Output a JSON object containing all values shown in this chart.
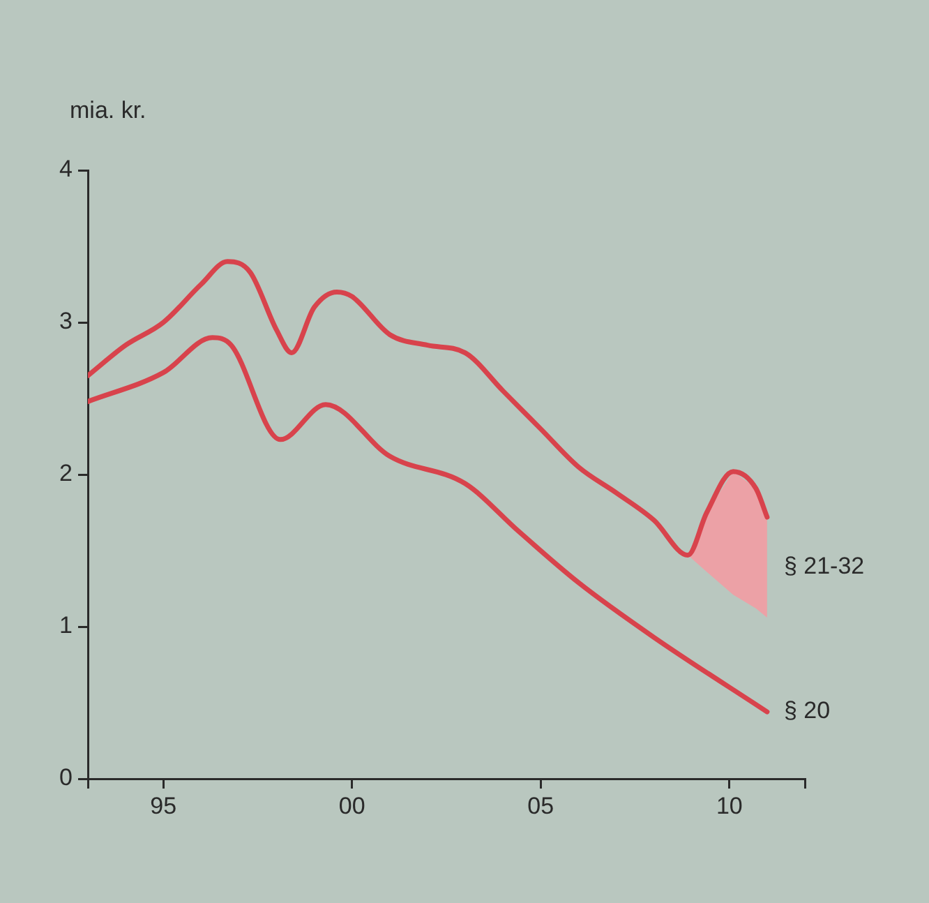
{
  "chart_data": {
    "type": "line",
    "ylabel": "mia. kr.",
    "xlim": [
      1993,
      2012
    ],
    "ylim": [
      0,
      4
    ],
    "xticks": [
      {
        "value": 1993,
        "label": null
      },
      {
        "value": 1995,
        "label": "95"
      },
      {
        "value": 2000,
        "label": "00"
      },
      {
        "value": 2005,
        "label": "05"
      },
      {
        "value": 2010,
        "label": "10"
      },
      {
        "value": 2012,
        "label": null
      }
    ],
    "yticks": [
      0,
      1,
      2,
      3,
      4
    ],
    "grid": false,
    "legend": false,
    "marker": "none",
    "series": [
      {
        "name": "§ 21-32",
        "color": "#d8434c",
        "x": [
          1993,
          1994,
          1995,
          1996,
          1996.7,
          1997.3,
          1998,
          1998.4,
          1999,
          1999.6,
          2000,
          2001,
          2002,
          2003,
          2004,
          2005,
          2006,
          2007,
          2008,
          2008.9,
          2009.4,
          2010.1,
          2010.7,
          2011
        ],
        "values": [
          2.65,
          2.85,
          3.0,
          3.25,
          3.4,
          3.33,
          2.95,
          2.8,
          3.1,
          3.2,
          3.17,
          2.92,
          2.85,
          2.8,
          2.55,
          2.3,
          2.05,
          1.88,
          1.7,
          1.47,
          1.75,
          2.02,
          1.91,
          1.72
        ],
        "lower": [
          null,
          null,
          null,
          null,
          null,
          null,
          null,
          null,
          null,
          null,
          null,
          null,
          null,
          null,
          null,
          null,
          null,
          null,
          null,
          1.47,
          1.36,
          1.21,
          1.12,
          1.06
        ],
        "upper": [
          null,
          null,
          null,
          null,
          null,
          null,
          null,
          null,
          null,
          null,
          null,
          null,
          null,
          null,
          null,
          null,
          null,
          null,
          null,
          1.47,
          1.75,
          2.02,
          1.91,
          1.72
        ]
      },
      {
        "name": "§ 20",
        "color": "#d8434c",
        "x": [
          1993,
          1995,
          1996.3,
          1996.8,
          1998.1,
          1999.3,
          2001,
          2003,
          2004.4,
          2006,
          2008,
          2011
        ],
        "values": [
          2.48,
          2.67,
          2.9,
          2.85,
          2.23,
          2.46,
          2.12,
          1.94,
          1.63,
          1.29,
          0.93,
          0.44
        ]
      }
    ]
  }
}
